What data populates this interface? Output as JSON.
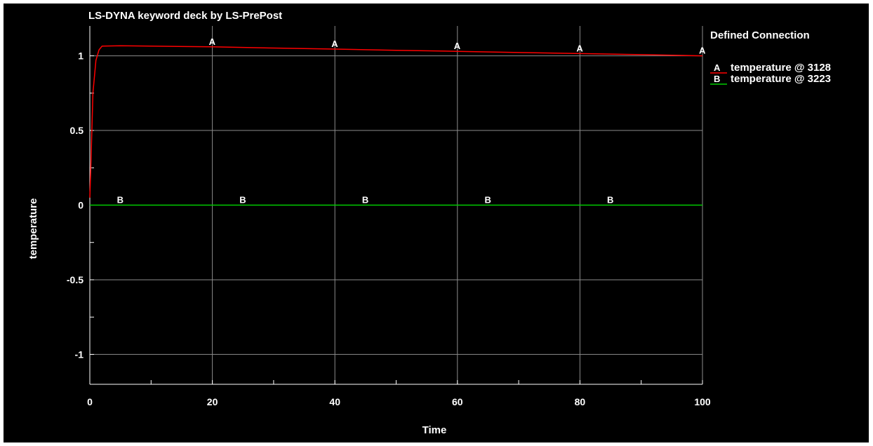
{
  "app": {
    "title": "LS-DYNA keyword deck by LS-PrePost"
  },
  "legend": {
    "title": "Defined Connection",
    "items": [
      {
        "marker": "A",
        "label": "temperature @ 3128",
        "color": "#ff0000"
      },
      {
        "marker": "B",
        "label": "temperature @ 3223",
        "color": "#00cc00"
      }
    ]
  },
  "chart_data": {
    "type": "line",
    "title": "LS-DYNA keyword deck by LS-PrePost",
    "xlabel": "Time",
    "ylabel": "temperature",
    "xlim": [
      0,
      100
    ],
    "ylim": [
      -1.2,
      1.2
    ],
    "x_ticks": [
      "0",
      "20",
      "40",
      "60",
      "80",
      "100"
    ],
    "y_ticks": [
      "1",
      "0.5",
      "0",
      "-0.5",
      "-1"
    ],
    "grid": true,
    "legend_position": "right",
    "series": [
      {
        "marker": "A",
        "name": "temperature @ 3128",
        "color": "#ff0000",
        "x": [
          0,
          0.2,
          0.5,
          1,
          1.5,
          2,
          5,
          10,
          20,
          30,
          40,
          50,
          60,
          70,
          80,
          90,
          100
        ],
        "y": [
          0.05,
          0.3,
          0.75,
          0.97,
          1.04,
          1.065,
          1.067,
          1.065,
          1.06,
          1.052,
          1.045,
          1.037,
          1.03,
          1.022,
          1.015,
          1.008,
          1.0
        ],
        "marker_x": [
          20,
          40,
          60,
          80,
          100
        ]
      },
      {
        "marker": "B",
        "name": "temperature @ 3223",
        "color": "#00cc00",
        "x": [
          0,
          100
        ],
        "y": [
          0,
          0
        ],
        "marker_x": [
          5,
          25,
          45,
          65,
          85
        ]
      }
    ]
  }
}
